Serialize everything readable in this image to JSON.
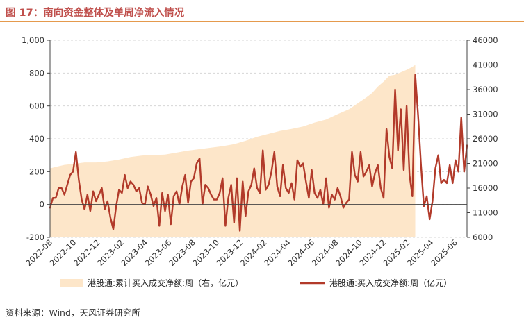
{
  "title": "图 17：南向资金整体及单周净流入情况",
  "source": "资料来源：Wind，天风证券研究所",
  "colors": {
    "title": "#c0504d",
    "rule": "#e59a4d",
    "area": "#fde6c9",
    "line": "#b23a2a",
    "axis": "#444444",
    "grid": "#d6d6d6"
  },
  "chart_data": {
    "type": "line",
    "grid": true,
    "legend_position": "bottom",
    "left_axis": {
      "ylim": [
        -200,
        1000
      ],
      "ticks": [
        "-200",
        "0",
        "200",
        "400",
        "600",
        "800",
        "1,000"
      ]
    },
    "right_axis": {
      "ylim": [
        6000,
        46000
      ],
      "ticks": [
        "6000",
        "11000",
        "16000",
        "21000",
        "26000",
        "31000",
        "36000",
        "41000",
        "46000"
      ]
    },
    "x_ticks": [
      "2022-08",
      "2022-10",
      "2022-12",
      "2023-02",
      "2023-04",
      "2023-06",
      "2023-08",
      "2023-10",
      "2023-12",
      "2024-02",
      "2024-04",
      "2024-06",
      "2024-08",
      "2024-10",
      "2024-12",
      "2025-02",
      "2025-04",
      "2025-06"
    ],
    "series": [
      {
        "name": "港股通:累计买入成交净额:周（右，亿元）",
        "type": "area",
        "axis": "right",
        "color": "#fde6c9",
        "points": [
          [
            0,
            20000
          ],
          [
            2,
            20300
          ],
          [
            5,
            20700
          ],
          [
            8,
            20900
          ],
          [
            12,
            21200
          ],
          [
            16,
            21200
          ],
          [
            20,
            21400
          ],
          [
            24,
            21800
          ],
          [
            28,
            22300
          ],
          [
            32,
            22600
          ],
          [
            36,
            22700
          ],
          [
            40,
            22800
          ],
          [
            44,
            23200
          ],
          [
            48,
            23600
          ],
          [
            52,
            23900
          ],
          [
            56,
            24200
          ],
          [
            60,
            24500
          ],
          [
            64,
            24900
          ],
          [
            68,
            25600
          ],
          [
            72,
            26400
          ],
          [
            76,
            27000
          ],
          [
            80,
            27600
          ],
          [
            84,
            28000
          ],
          [
            88,
            28500
          ],
          [
            92,
            29300
          ],
          [
            96,
            29900
          ],
          [
            100,
            31000
          ],
          [
            104,
            32000
          ],
          [
            108,
            33600
          ],
          [
            110,
            34400
          ],
          [
            112,
            35300
          ],
          [
            114,
            36600
          ],
          [
            116,
            37600
          ],
          [
            118,
            38800
          ],
          [
            120,
            39000
          ],
          [
            122,
            39500
          ],
          [
            124,
            40000
          ],
          [
            126,
            40600
          ],
          [
            127,
            41000
          ]
        ]
      },
      {
        "name": "港股通:买入成交净额:周（亿元）",
        "type": "line",
        "axis": "left",
        "color": "#b23a2a",
        "points": [
          [
            0,
            -20
          ],
          [
            1,
            40
          ],
          [
            2,
            40
          ],
          [
            3,
            100
          ],
          [
            4,
            100
          ],
          [
            5,
            60
          ],
          [
            6,
            120
          ],
          [
            7,
            180
          ],
          [
            8,
            200
          ],
          [
            9,
            320
          ],
          [
            10,
            150
          ],
          [
            11,
            30
          ],
          [
            12,
            -30
          ],
          [
            13,
            60
          ],
          [
            14,
            -40
          ],
          [
            15,
            80
          ],
          [
            16,
            20
          ],
          [
            17,
            60
          ],
          [
            18,
            100
          ],
          [
            19,
            -30
          ],
          [
            20,
            20
          ],
          [
            21,
            -80
          ],
          [
            22,
            -150
          ],
          [
            23,
            -10
          ],
          [
            24,
            90
          ],
          [
            25,
            70
          ],
          [
            26,
            180
          ],
          [
            27,
            100
          ],
          [
            28,
            140
          ],
          [
            29,
            120
          ],
          [
            30,
            80
          ],
          [
            31,
            100
          ],
          [
            32,
            10
          ],
          [
            33,
            0
          ],
          [
            34,
            110
          ],
          [
            35,
            60
          ],
          [
            36,
            -10
          ],
          [
            37,
            40
          ],
          [
            38,
            -130
          ],
          [
            39,
            70
          ],
          [
            40,
            -40
          ],
          [
            41,
            60
          ],
          [
            42,
            -120
          ],
          [
            43,
            50
          ],
          [
            44,
            80
          ],
          [
            45,
            0
          ],
          [
            46,
            110
          ],
          [
            47,
            180
          ],
          [
            48,
            10
          ],
          [
            49,
            140
          ],
          [
            50,
            160
          ],
          [
            51,
            250
          ],
          [
            52,
            280
          ],
          [
            53,
            0
          ],
          [
            54,
            120
          ],
          [
            55,
            100
          ],
          [
            56,
            60
          ],
          [
            57,
            30
          ],
          [
            58,
            30
          ],
          [
            59,
            70
          ],
          [
            60,
            160
          ],
          [
            61,
            -130
          ],
          [
            62,
            40
          ],
          [
            63,
            120
          ],
          [
            64,
            -110
          ],
          [
            65,
            160
          ],
          [
            66,
            -160
          ],
          [
            67,
            140
          ],
          [
            68,
            -70
          ],
          [
            69,
            80
          ],
          [
            70,
            120
          ],
          [
            71,
            220
          ],
          [
            72,
            100
          ],
          [
            73,
            70
          ],
          [
            74,
            330
          ],
          [
            75,
            90
          ],
          [
            76,
            120
          ],
          [
            77,
            200
          ],
          [
            78,
            320
          ],
          [
            79,
            110
          ],
          [
            80,
            50
          ],
          [
            81,
            240
          ],
          [
            82,
            100
          ],
          [
            83,
            70
          ],
          [
            84,
            130
          ],
          [
            85,
            30
          ],
          [
            86,
            270
          ],
          [
            87,
            230
          ],
          [
            88,
            250
          ],
          [
            89,
            140
          ],
          [
            90,
            40
          ],
          [
            91,
            210
          ],
          [
            92,
            70
          ],
          [
            93,
            40
          ],
          [
            94,
            90
          ],
          [
            95,
            0
          ],
          [
            96,
            160
          ],
          [
            97,
            -20
          ],
          [
            98,
            60
          ],
          [
            99,
            30
          ],
          [
            100,
            100
          ],
          [
            101,
            50
          ],
          [
            102,
            -20
          ],
          [
            103,
            10
          ],
          [
            104,
            30
          ],
          [
            105,
            320
          ],
          [
            106,
            180
          ],
          [
            107,
            140
          ],
          [
            108,
            320
          ],
          [
            109,
            170
          ],
          [
            110,
            200
          ],
          [
            111,
            240
          ],
          [
            112,
            110
          ],
          [
            113,
            190
          ],
          [
            114,
            240
          ],
          [
            115,
            100
          ],
          [
            116,
            40
          ],
          [
            117,
            460
          ],
          [
            118,
            290
          ],
          [
            119,
            220
          ],
          [
            120,
            700
          ],
          [
            121,
            330
          ],
          [
            122,
            580
          ],
          [
            123,
            210
          ],
          [
            124,
            600
          ],
          [
            125,
            180
          ],
          [
            126,
            50
          ],
          [
            127,
            790
          ],
          [
            128,
            540
          ],
          [
            129,
            240
          ],
          [
            130,
            -10
          ],
          [
            131,
            50
          ],
          [
            132,
            -90
          ],
          [
            133,
            20
          ],
          [
            134,
            220
          ],
          [
            135,
            300
          ],
          [
            136,
            130
          ],
          [
            137,
            150
          ],
          [
            138,
            130
          ],
          [
            139,
            240
          ],
          [
            140,
            130
          ],
          [
            141,
            270
          ],
          [
            142,
            200
          ],
          [
            143,
            530
          ],
          [
            144,
            200
          ],
          [
            145,
            360
          ]
        ]
      }
    ]
  }
}
